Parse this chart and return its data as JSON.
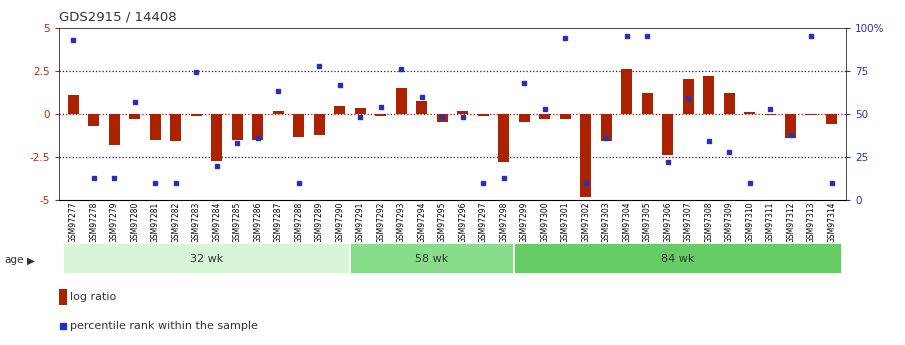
{
  "title": "GDS2915 / 14408",
  "samples": [
    "GSM97277",
    "GSM97278",
    "GSM97279",
    "GSM97280",
    "GSM97281",
    "GSM97282",
    "GSM97283",
    "GSM97284",
    "GSM97285",
    "GSM97286",
    "GSM97287",
    "GSM97288",
    "GSM97289",
    "GSM97290",
    "GSM97291",
    "GSM97292",
    "GSM97293",
    "GSM97294",
    "GSM97295",
    "GSM97296",
    "GSM97297",
    "GSM97298",
    "GSM97299",
    "GSM97300",
    "GSM97301",
    "GSM97302",
    "GSM97303",
    "GSM97304",
    "GSM97305",
    "GSM97306",
    "GSM97307",
    "GSM97308",
    "GSM97309",
    "GSM97310",
    "GSM97311",
    "GSM97312",
    "GSM97313",
    "GSM97314"
  ],
  "log_ratio": [
    1.1,
    -0.7,
    -1.8,
    -0.3,
    -1.5,
    -1.6,
    -0.15,
    -2.75,
    -1.5,
    -1.5,
    0.15,
    -1.35,
    -1.25,
    0.45,
    0.35,
    -0.1,
    1.5,
    0.75,
    -0.5,
    0.15,
    -0.1,
    -2.8,
    -0.5,
    -0.3,
    -0.3,
    -4.8,
    -1.6,
    2.6,
    1.2,
    -2.4,
    2.0,
    2.2,
    1.2,
    0.1,
    -0.05,
    -1.4,
    -0.05,
    -0.6
  ],
  "percentile": [
    93,
    13,
    13,
    57,
    10,
    10,
    74,
    20,
    33,
    36,
    63,
    10,
    78,
    67,
    48,
    54,
    76,
    60,
    48,
    48,
    10,
    13,
    68,
    53,
    94,
    10,
    36,
    95,
    95,
    22,
    59,
    34,
    28,
    10,
    53,
    38,
    95,
    10
  ],
  "groups": [
    {
      "label": "32 wk",
      "start": 0,
      "end": 14,
      "color": "#d8f5d8"
    },
    {
      "label": "58 wk",
      "start": 14,
      "end": 22,
      "color": "#88dd88"
    },
    {
      "label": "84 wk",
      "start": 22,
      "end": 38,
      "color": "#66cc66"
    }
  ],
  "ylim_left": [
    -5,
    5
  ],
  "ylim_right": [
    0,
    100
  ],
  "bar_color": "#aa2200",
  "dot_color": "#2233bb",
  "zero_line_color": "#cc0000",
  "dotted_line_color": "#222222",
  "bg_color": "#ffffff",
  "left_ytick_color": "#cc2200",
  "right_ytick_color": "#2233bb"
}
